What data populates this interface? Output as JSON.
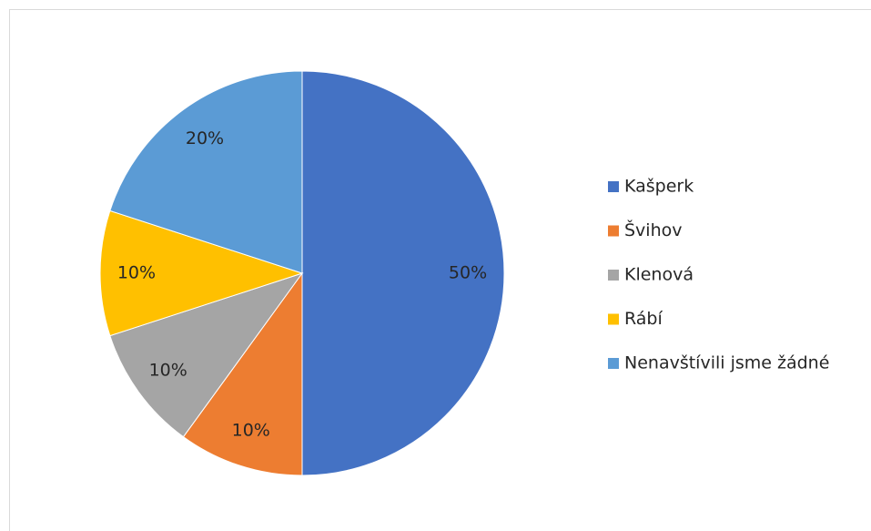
{
  "chart_data": {
    "type": "pie",
    "categories": [
      "Kašperk",
      "Švihov",
      "Klenová",
      "Rábí",
      "Nenavštívili jsme žádné"
    ],
    "values": [
      50,
      10,
      10,
      10,
      20
    ],
    "value_labels": [
      "50%",
      "10%",
      "10%",
      "10%",
      "20%"
    ],
    "colors": [
      "#4472c4",
      "#ed7d31",
      "#a5a5a5",
      "#ffc000",
      "#5b9bd5"
    ],
    "legend": "right"
  }
}
